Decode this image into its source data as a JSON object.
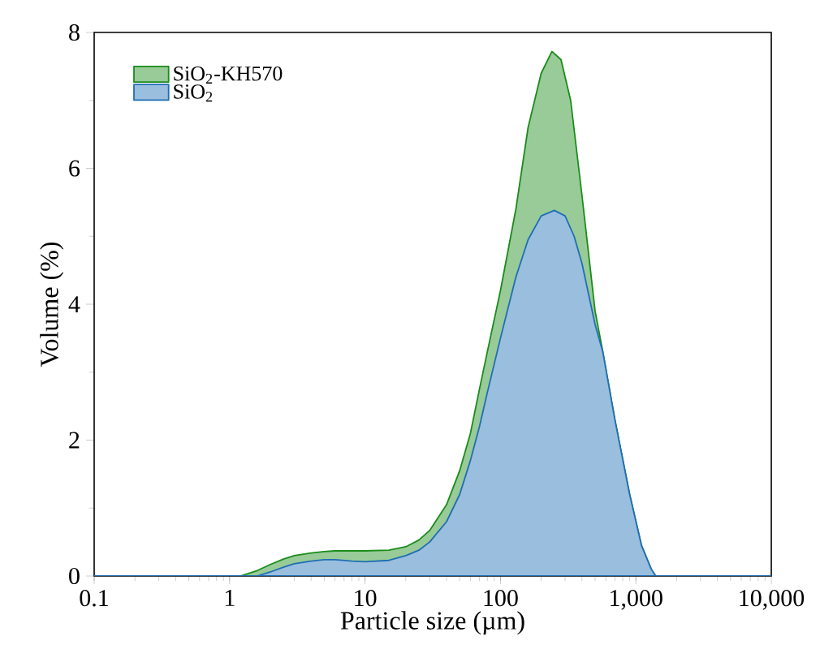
{
  "chart_data": {
    "type": "area",
    "xlabel": "Particle size (µm)",
    "ylabel": "Volume (%)",
    "log": "x",
    "legend": "top left",
    "xlim": [
      0.1,
      10000
    ],
    "ylim": [
      0,
      8
    ],
    "xticks": [
      0.1,
      1,
      10,
      100,
      {
        "value": 1000,
        "label": "1,000"
      },
      {
        "value": 10000,
        "label": "10,000"
      }
    ],
    "yticks": [
      0,
      2,
      4,
      6,
      8
    ],
    "series": [
      {
        "name": "SiO$_{2}$-KH570",
        "color": "#1a8c1a",
        "x": [
          0.1,
          1,
          1.2,
          1.6,
          2,
          2.5,
          3,
          4,
          5,
          6,
          8,
          10,
          15,
          20,
          25,
          30,
          40,
          50,
          60,
          70,
          80,
          100,
          130,
          160,
          200,
          240,
          280,
          330,
          400,
          500,
          570,
          700,
          900,
          1100,
          1300,
          1400,
          2000,
          10000
        ],
        "values": [
          0,
          0,
          0,
          0.08,
          0.17,
          0.25,
          0.3,
          0.34,
          0.36,
          0.37,
          0.37,
          0.37,
          0.38,
          0.43,
          0.53,
          0.67,
          1.05,
          1.55,
          2.1,
          2.75,
          3.3,
          4.2,
          5.4,
          6.6,
          7.4,
          7.72,
          7.6,
          7.0,
          5.6,
          3.9,
          3.3,
          2.3,
          1.2,
          0.45,
          0.1,
          0,
          0,
          0
        ]
      },
      {
        "name": "SiO$_{2}$",
        "color": "#1f6eb4",
        "x": [
          0.1,
          1,
          1.6,
          2,
          2.5,
          3,
          4,
          5,
          6,
          8,
          10,
          15,
          20,
          25,
          30,
          40,
          50,
          60,
          70,
          80,
          100,
          130,
          160,
          200,
          250,
          300,
          350,
          400,
          500,
          570,
          700,
          900,
          1100,
          1300,
          1400,
          2000,
          10000
        ],
        "values": [
          0,
          0,
          0,
          0.06,
          0.13,
          0.18,
          0.22,
          0.24,
          0.24,
          0.22,
          0.21,
          0.23,
          0.3,
          0.38,
          0.5,
          0.8,
          1.2,
          1.7,
          2.2,
          2.7,
          3.5,
          4.4,
          4.95,
          5.3,
          5.38,
          5.3,
          5.0,
          4.6,
          3.7,
          3.3,
          2.3,
          1.2,
          0.45,
          0.1,
          0,
          0,
          0
        ]
      }
    ]
  }
}
